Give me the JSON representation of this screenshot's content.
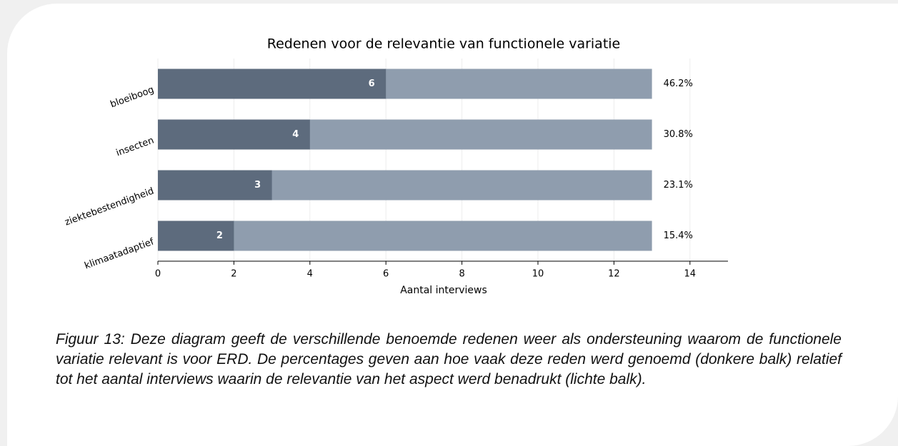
{
  "chart_data": {
    "type": "bar",
    "orientation": "horizontal",
    "title": "Redenen voor de relevantie van functionele variatie",
    "xlabel": "Aantal interviews",
    "categories": [
      "bloeiboog",
      "insecten",
      "ziektebestendigheid",
      "klimaatadaptief"
    ],
    "series": [
      {
        "color": "#8f9dae",
        "values": [
          13,
          13,
          13,
          13
        ]
      },
      {
        "color": "#5d6b7d",
        "values": [
          6,
          4,
          3,
          2
        ]
      }
    ],
    "annotations": [
      "46.2%",
      "30.8%",
      "23.1%",
      "15.4%"
    ],
    "xlim": [
      0,
      15
    ],
    "xticks": [
      0,
      2,
      4,
      6,
      8,
      10,
      12,
      14
    ],
    "grid": true
  },
  "caption": "Figuur 13: Deze diagram geeft de verschillende benoemde redenen weer als ondersteuning waarom de functionele variatie relevant is voor ERD. De percentages geven aan hoe vaak deze reden werd genoemd (donkere balk) relatief tot het aantal interviews waarin de relevantie van het aspect werd benadrukt (lichte balk)."
}
